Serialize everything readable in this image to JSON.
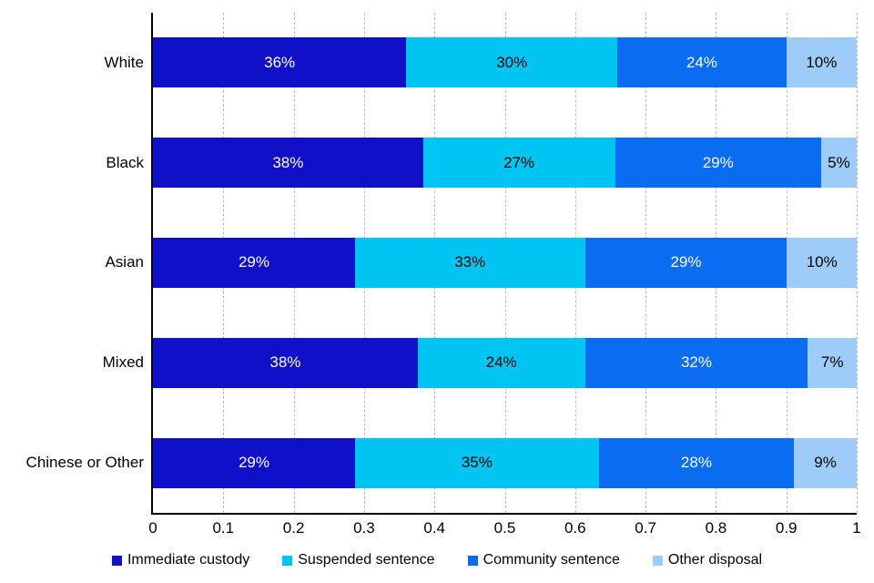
{
  "chart_data": {
    "type": "bar",
    "variant": "stacked-horizontal",
    "title": "",
    "xlabel": "",
    "ylabel": "",
    "xlim": [
      0,
      1
    ],
    "x_ticks": [
      "0",
      "0.1",
      "0.2",
      "0.3",
      "0.4",
      "0.5",
      "0.6",
      "0.7",
      "0.8",
      "0.9",
      "1"
    ],
    "grid": "vertical-dashed",
    "gridline_color": "#bfbfbf",
    "legend_position": "bottom",
    "value_suffix": "%",
    "categories": [
      "White",
      "Black",
      "Asian",
      "Mixed",
      "Chinese or Other"
    ],
    "series": [
      {
        "name": "Immediate custody",
        "color": "#1010c8",
        "label_color": "#ffffff",
        "values": [
          36,
          38,
          29,
          38,
          29
        ]
      },
      {
        "name": "Suspended sentence",
        "color": "#00c4f2",
        "label_color": "#000000",
        "values": [
          30,
          27,
          33,
          24,
          35
        ]
      },
      {
        "name": "Community sentence",
        "color": "#0a6cf0",
        "label_color": "#ffffff",
        "values": [
          24,
          29,
          29,
          32,
          28
        ]
      },
      {
        "name": "Other disposal",
        "color": "#9dccf8",
        "label_color": "#000000",
        "values": [
          10,
          5,
          10,
          7,
          9
        ]
      }
    ]
  }
}
